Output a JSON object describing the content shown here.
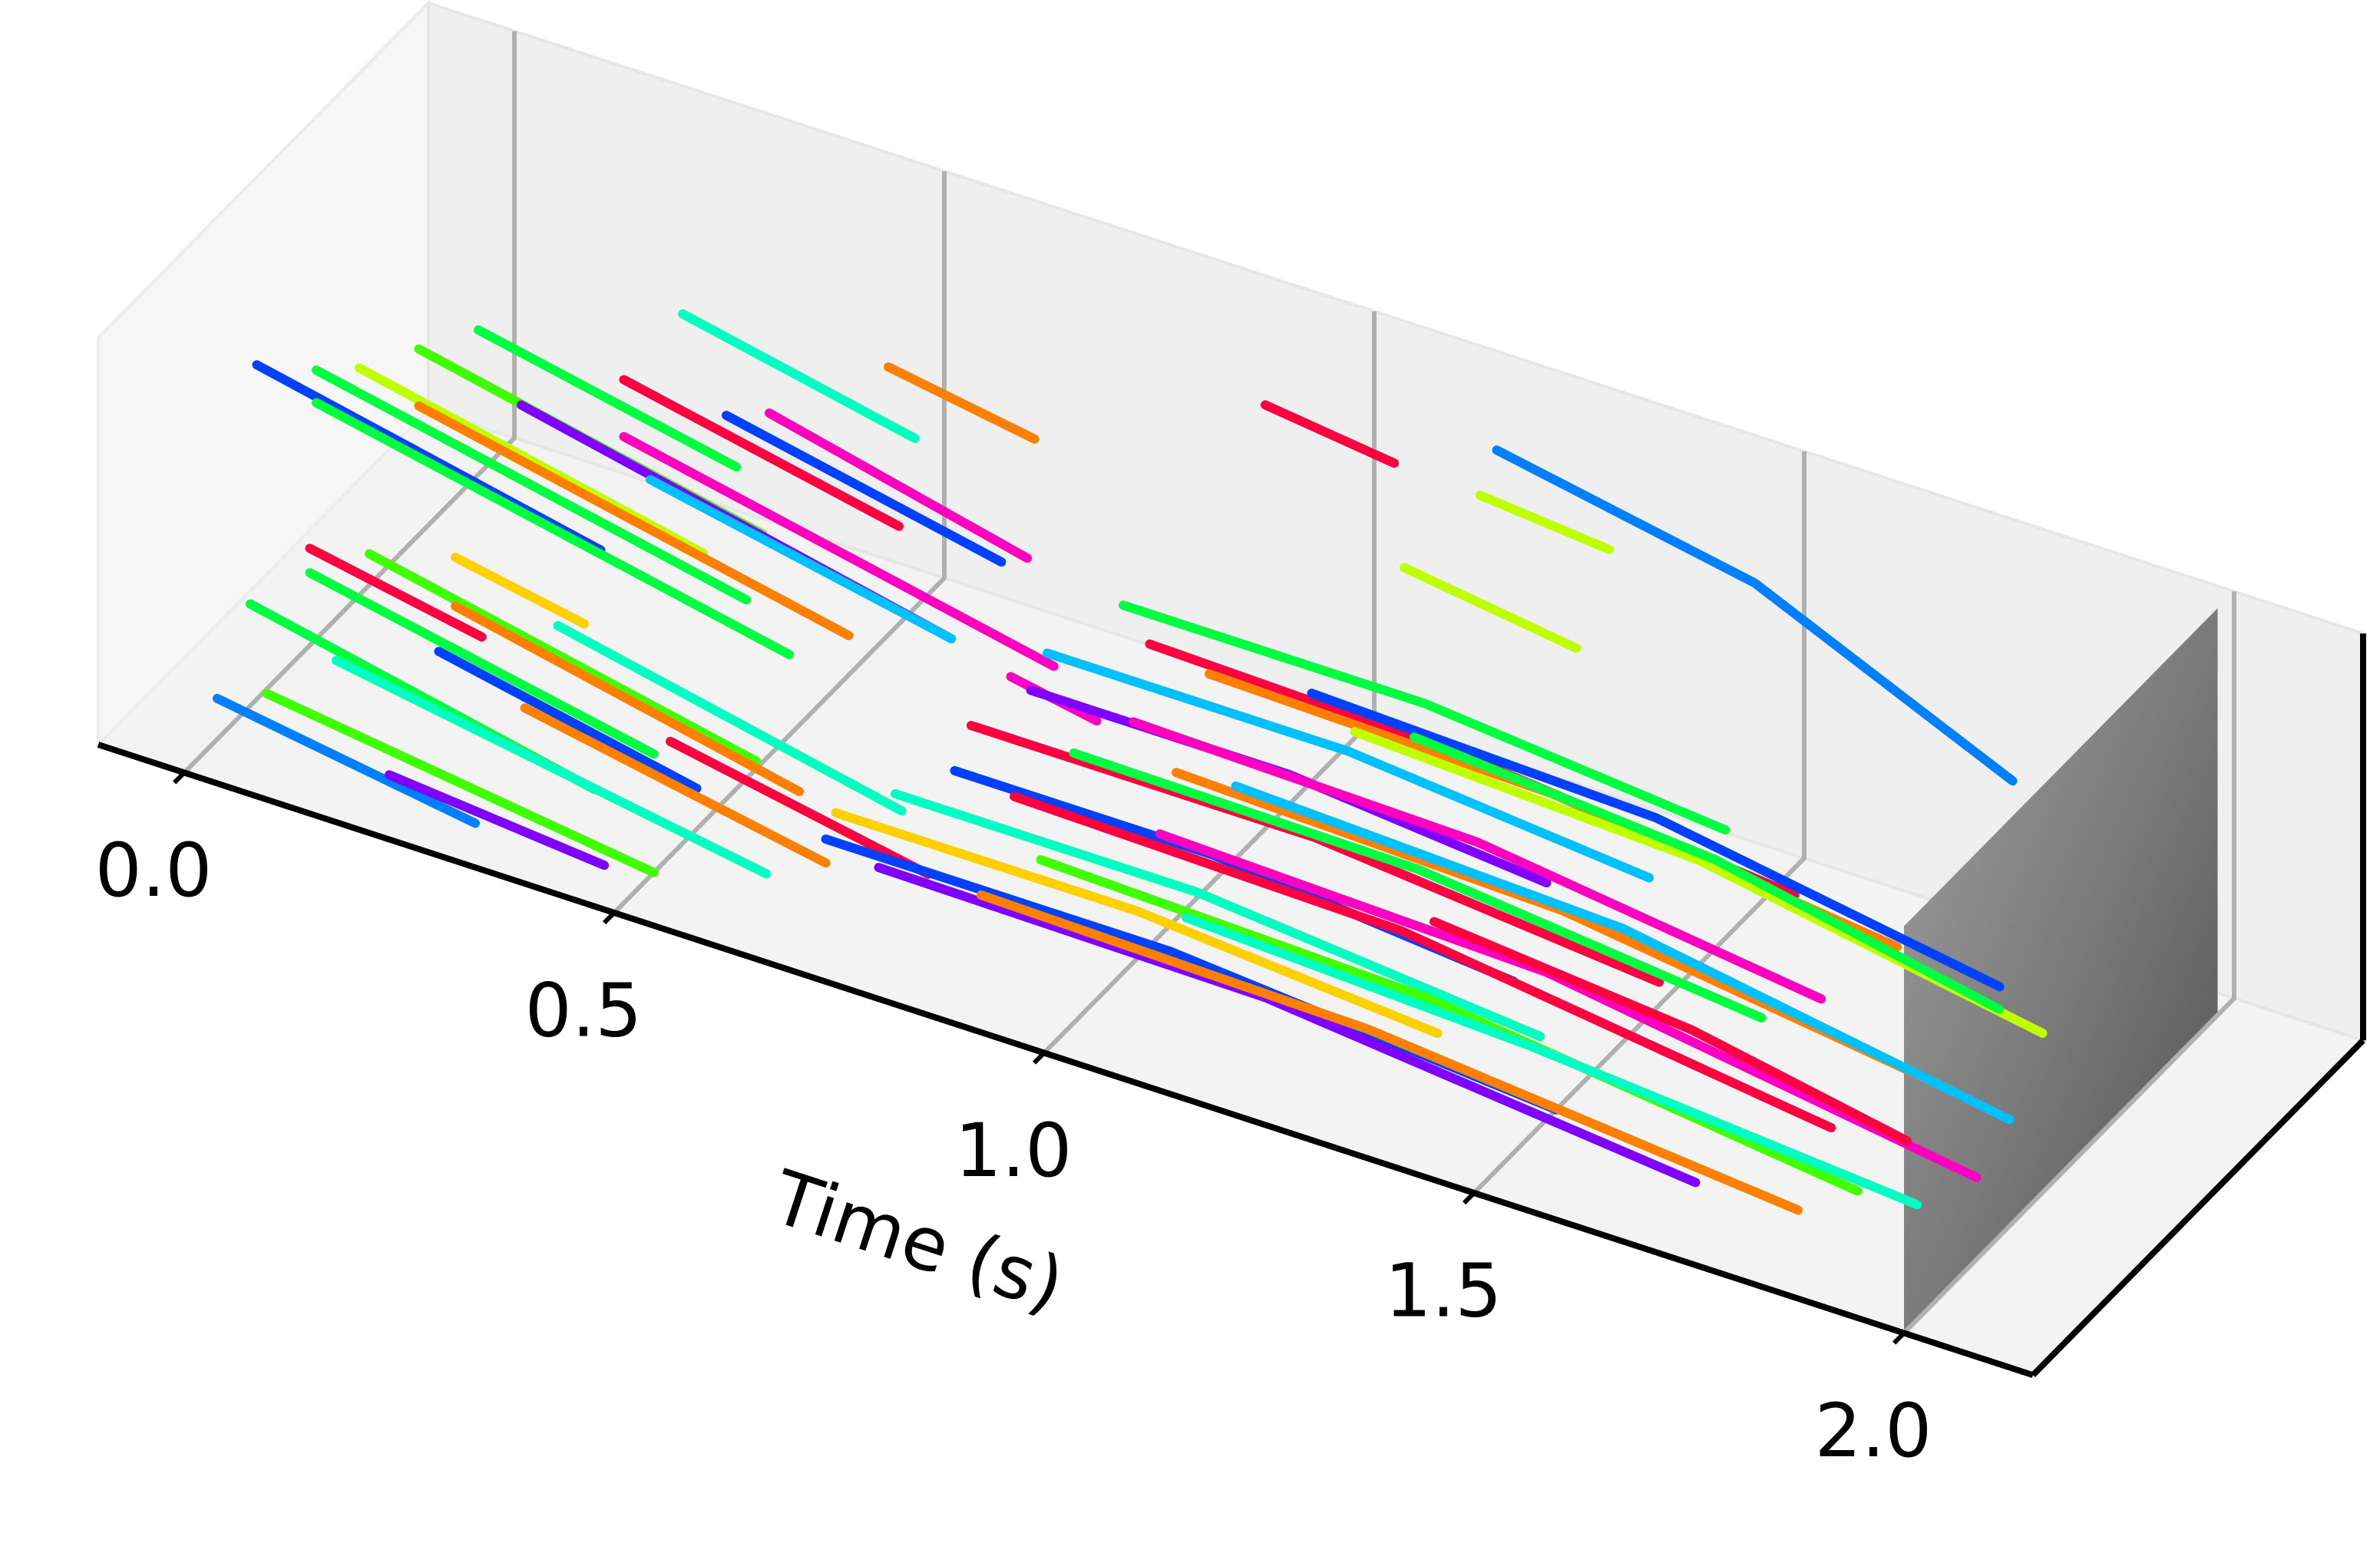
{
  "chart_data": {
    "type": "3d-line",
    "xlabel": "Time (s)",
    "xlim": [
      -0.1,
      2.15
    ],
    "xticks": [
      {
        "value": 0,
        "label": "0.0"
      },
      {
        "value": 0.5,
        "label": "0.5"
      },
      {
        "value": 1,
        "label": "1.0"
      },
      {
        "value": 1.5,
        "label": "1.5"
      },
      {
        "value": 2,
        "label": "2.0"
      }
    ],
    "depthlim": [
      0,
      1
    ],
    "ylim": [
      0,
      1
    ],
    "grid": true,
    "series": [
      {
        "color": "#00ffc0",
        "x": [
          0.33,
          0.6
        ],
        "depth": [
          0.65,
          0.65
        ],
        "values": [
          0.82,
          0.7
        ]
      },
      {
        "color": "#ff8000",
        "x": [
          0.55,
          0.72
        ],
        "depth": [
          0.7,
          0.7
        ],
        "values": [
          0.8,
          0.74
        ]
      },
      {
        "color": "#00ff40",
        "x": [
          0.15,
          0.45
        ],
        "depth": [
          0.5,
          0.5
        ],
        "values": [
          0.78,
          0.65
        ]
      },
      {
        "color": "#ff0040",
        "x": [
          0.3,
          0.62
        ],
        "depth": [
          0.55,
          0.55
        ],
        "values": [
          0.72,
          0.58
        ]
      },
      {
        "color": "#40ff00",
        "x": [
          0.1,
          0.5
        ],
        "depth": [
          0.45,
          0.45
        ],
        "values": [
          0.74,
          0.56
        ]
      },
      {
        "color": "#0040ff",
        "x": [
          0.4,
          0.72
        ],
        "depth": [
          0.6,
          0.6
        ],
        "values": [
          0.66,
          0.52
        ]
      },
      {
        "color": "#ff00c0",
        "x": [
          0.45,
          0.75
        ],
        "depth": [
          0.6,
          0.6
        ],
        "values": [
          0.7,
          0.55
        ]
      },
      {
        "color": "#c0ff00",
        "x": [
          0.05,
          0.45
        ],
        "depth": [
          0.4,
          0.4
        ],
        "values": [
          0.7,
          0.52
        ]
      },
      {
        "color": "#8000ff",
        "x": [
          0.2,
          0.7
        ],
        "depth": [
          0.5,
          0.5
        ],
        "values": [
          0.63,
          0.4
        ]
      },
      {
        "color": "#00ff40",
        "x": [
          0.0,
          0.5
        ],
        "depth": [
          0.4,
          0.4
        ],
        "values": [
          0.66,
          0.44
        ]
      },
      {
        "color": "#0040ff",
        "x": [
          -0.05,
          0.35
        ],
        "depth": [
          0.35,
          0.35
        ],
        "values": [
          0.68,
          0.5
        ]
      },
      {
        "color": "#ff8000",
        "x": [
          0.1,
          0.6
        ],
        "depth": [
          0.45,
          0.45
        ],
        "values": [
          0.6,
          0.38
        ]
      },
      {
        "color": "#ff00c0",
        "x": [
          0.3,
          0.8
        ],
        "depth": [
          0.55,
          0.55
        ],
        "values": [
          0.58,
          0.36
        ]
      },
      {
        "color": "#00ff40",
        "x": [
          0.0,
          0.55
        ],
        "depth": [
          0.4,
          0.4
        ],
        "values": [
          0.58,
          0.34
        ]
      },
      {
        "color": "#00c0ff",
        "x": [
          0.35,
          0.7
        ],
        "depth": [
          0.5,
          0.5
        ],
        "values": [
          0.55,
          0.4
        ]
      },
      {
        "color": "#ffd000",
        "x": [
          0.2,
          0.35
        ],
        "depth": [
          0.3,
          0.3
        ],
        "values": [
          0.42,
          0.36
        ]
      },
      {
        "color": "#ff0040",
        "x": [
          0.05,
          0.25
        ],
        "depth": [
          0.25,
          0.25
        ],
        "values": [
          0.38,
          0.3
        ]
      },
      {
        "color": "#40ff00",
        "x": [
          0.1,
          0.55
        ],
        "depth": [
          0.3,
          0.3
        ],
        "values": [
          0.36,
          0.16
        ]
      },
      {
        "color": "#00ff40",
        "x": [
          0.05,
          0.45
        ],
        "depth": [
          0.25,
          0.25
        ],
        "values": [
          0.32,
          0.15
        ]
      },
      {
        "color": "#ff8000",
        "x": [
          0.2,
          0.6
        ],
        "depth": [
          0.3,
          0.3
        ],
        "values": [
          0.3,
          0.12
        ]
      },
      {
        "color": "#00ffc0",
        "x": [
          0.3,
          0.7
        ],
        "depth": [
          0.35,
          0.35
        ],
        "values": [
          0.28,
          0.1
        ]
      },
      {
        "color": "#00ff40",
        "x": [
          0.0,
          0.4
        ],
        "depth": [
          0.2,
          0.2
        ],
        "values": [
          0.25,
          0.07
        ]
      },
      {
        "color": "#0040ff",
        "x": [
          0.2,
          0.5
        ],
        "depth": [
          0.25,
          0.25
        ],
        "values": [
          0.23,
          0.1
        ]
      },
      {
        "color": "#00ffc0",
        "x": [
          0.1,
          0.6
        ],
        "depth": [
          0.2,
          0.2
        ],
        "values": [
          0.18,
          0.0
        ]
      },
      {
        "color": "#ff8000",
        "x": [
          0.3,
          0.65
        ],
        "depth": [
          0.25,
          0.25
        ],
        "values": [
          0.16,
          0.02
        ]
      },
      {
        "color": "#40ff00",
        "x": [
          0.05,
          0.5
        ],
        "depth": [
          0.12,
          0.12
        ],
        "values": [
          0.13,
          0.0
        ]
      },
      {
        "color": "#ff0040",
        "x": [
          0.45,
          0.75
        ],
        "depth": [
          0.3,
          0.3
        ],
        "values": [
          0.14,
          0.02
        ]
      },
      {
        "color": "#0080ff",
        "x": [
          0.0,
          0.3
        ],
        "depth": [
          0.1,
          0.1
        ],
        "values": [
          0.1,
          0.0
        ]
      },
      {
        "color": "#8000ff",
        "x": [
          0.2,
          0.45
        ],
        "depth": [
          0.1,
          0.1
        ],
        "values": [
          0.05,
          0.0
        ]
      },
      {
        "color": "#ff00c0",
        "x": [
          0.75,
          0.85
        ],
        "depth": [
          0.55,
          0.55
        ],
        "values": [
          0.3,
          0.26
        ]
      },
      {
        "color": "#00ff40",
        "x": [
          0.9,
          1.25,
          1.6
        ],
        "depth": [
          0.5,
          0.5,
          0.5
        ],
        "values": [
          0.62,
          0.62,
          0.55
        ]
      },
      {
        "color": "#ff0040",
        "x": [
          0.95,
          1.3,
          1.7
        ],
        "depth": [
          0.45,
          0.45,
          0.45
        ],
        "values": [
          0.6,
          0.58,
          0.5
        ]
      },
      {
        "color": "#00c0ff",
        "x": [
          0.85,
          1.2,
          1.55
        ],
        "depth": [
          0.4,
          0.4,
          0.4
        ],
        "values": [
          0.55,
          0.55,
          0.48
        ]
      },
      {
        "color": "#ff8000",
        "x": [
          1.0,
          1.4,
          1.8
        ],
        "depth": [
          0.5,
          0.5,
          0.5
        ],
        "values": [
          0.52,
          0.5,
          0.4
        ]
      },
      {
        "color": "#8000ff",
        "x": [
          0.85,
          1.15,
          1.45
        ],
        "depth": [
          0.35,
          0.35,
          0.35
        ],
        "values": [
          0.5,
          0.5,
          0.44
        ]
      },
      {
        "color": "#0040ff",
        "x": [
          1.1,
          1.5,
          1.9
        ],
        "depth": [
          0.55,
          0.55,
          0.55
        ],
        "values": [
          0.5,
          0.47,
          0.33
        ]
      },
      {
        "color": "#ff00c0",
        "x": [
          0.95,
          1.35,
          1.75
        ],
        "depth": [
          0.4,
          0.4,
          0.4
        ],
        "values": [
          0.45,
          0.43,
          0.32
        ]
      },
      {
        "color": "#c0ff00",
        "x": [
          1.15,
          1.55,
          1.95
        ],
        "depth": [
          0.55,
          0.55,
          0.55
        ],
        "values": [
          0.44,
          0.4,
          0.25
        ]
      },
      {
        "color": "#ff0040",
        "x": [
          0.8,
          1.2,
          1.6
        ],
        "depth": [
          0.3,
          0.3,
          0.3
        ],
        "values": [
          0.42,
          0.42,
          0.34
        ]
      },
      {
        "color": "#00ff40",
        "x": [
          0.9,
          1.3,
          1.7
        ],
        "depth": [
          0.35,
          0.35,
          0.35
        ],
        "values": [
          0.38,
          0.37,
          0.28
        ]
      },
      {
        "color": "#ff8000",
        "x": [
          1.0,
          1.45,
          1.9
        ],
        "depth": [
          0.4,
          0.4,
          0.4
        ],
        "values": [
          0.36,
          0.33,
          0.2
        ]
      },
      {
        "color": "#0040ff",
        "x": [
          0.8,
          1.1,
          1.45
        ],
        "depth": [
          0.25,
          0.25,
          0.25
        ],
        "values": [
          0.35,
          0.35,
          0.28
        ]
      },
      {
        "color": "#00c0ff",
        "x": [
          1.05,
          1.5,
          1.95
        ],
        "depth": [
          0.45,
          0.45,
          0.45
        ],
        "values": [
          0.32,
          0.28,
          0.12
        ]
      },
      {
        "color": "#00ffc0",
        "x": [
          0.75,
          1.1,
          1.5
        ],
        "depth": [
          0.2,
          0.2,
          0.2
        ],
        "values": [
          0.3,
          0.3,
          0.22
        ]
      },
      {
        "color": "#ff0040",
        "x": [
          0.85,
          1.3,
          1.8
        ],
        "depth": [
          0.3,
          0.3,
          0.3
        ],
        "values": [
          0.28,
          0.26,
          0.12
        ]
      },
      {
        "color": "#ffd000",
        "x": [
          0.7,
          1.05,
          1.4
        ],
        "depth": [
          0.15,
          0.15,
          0.15
        ],
        "values": [
          0.26,
          0.26,
          0.2
        ]
      },
      {
        "color": "#ff00c0",
        "x": [
          1.0,
          1.45,
          1.95
        ],
        "depth": [
          0.35,
          0.35,
          0.35
        ],
        "values": [
          0.25,
          0.22,
          0.06
        ]
      },
      {
        "color": "#0040ff",
        "x": [
          0.7,
          1.1,
          1.55
        ],
        "depth": [
          0.12,
          0.12,
          0.12
        ],
        "values": [
          0.22,
          0.22,
          0.14
        ]
      },
      {
        "color": "#40ff00",
        "x": [
          0.9,
          1.35,
          1.85
        ],
        "depth": [
          0.25,
          0.25,
          0.25
        ],
        "values": [
          0.2,
          0.17,
          0.04
        ]
      },
      {
        "color": "#8000ff",
        "x": [
          0.75,
          1.2,
          1.7
        ],
        "depth": [
          0.15,
          0.15,
          0.15
        ],
        "values": [
          0.16,
          0.15,
          0.04
        ]
      },
      {
        "color": "#ff8000",
        "x": [
          0.85,
          1.3,
          1.8
        ],
        "depth": [
          0.2,
          0.2,
          0.2
        ],
        "values": [
          0.12,
          0.1,
          0.0
        ]
      },
      {
        "color": "#00ffc0",
        "x": [
          1.05,
          1.45,
          1.9
        ],
        "depth": [
          0.3,
          0.3,
          0.3
        ],
        "values": [
          0.12,
          0.08,
          0.0
        ]
      },
      {
        "color": "#ff0040",
        "x": [
          1.3,
          1.6,
          1.85
        ],
        "depth": [
          0.4,
          0.4,
          0.4
        ],
        "values": [
          0.2,
          0.14,
          0.04
        ]
      },
      {
        "color": "#00ff40",
        "x": [
          1.2,
          1.55,
          1.88
        ],
        "depth": [
          0.6,
          0.6,
          0.6
        ],
        "values": [
          0.42,
          0.36,
          0.22
        ]
      },
      {
        "color": "#0080ff",
        "x": [
          1.2,
          1.5,
          1.8
        ],
        "depth": [
          0.85,
          0.85,
          0.85
        ],
        "values": [
          0.92,
          0.8,
          0.52
        ]
      },
      {
        "color": "#ff0040",
        "x": [
          0.95,
          1.1
        ],
        "depth": [
          0.8,
          0.8
        ],
        "values": [
          0.9,
          0.86
        ]
      },
      {
        "color": "#c0ff00",
        "x": [
          1.15,
          1.35
        ],
        "depth": [
          0.7,
          0.7
        ],
        "values": [
          0.72,
          0.66
        ]
      },
      {
        "color": "#c0ff00",
        "x": [
          1.2,
          1.35
        ],
        "depth": [
          0.8,
          0.8
        ],
        "values": [
          0.85,
          0.82
        ]
      }
    ]
  }
}
